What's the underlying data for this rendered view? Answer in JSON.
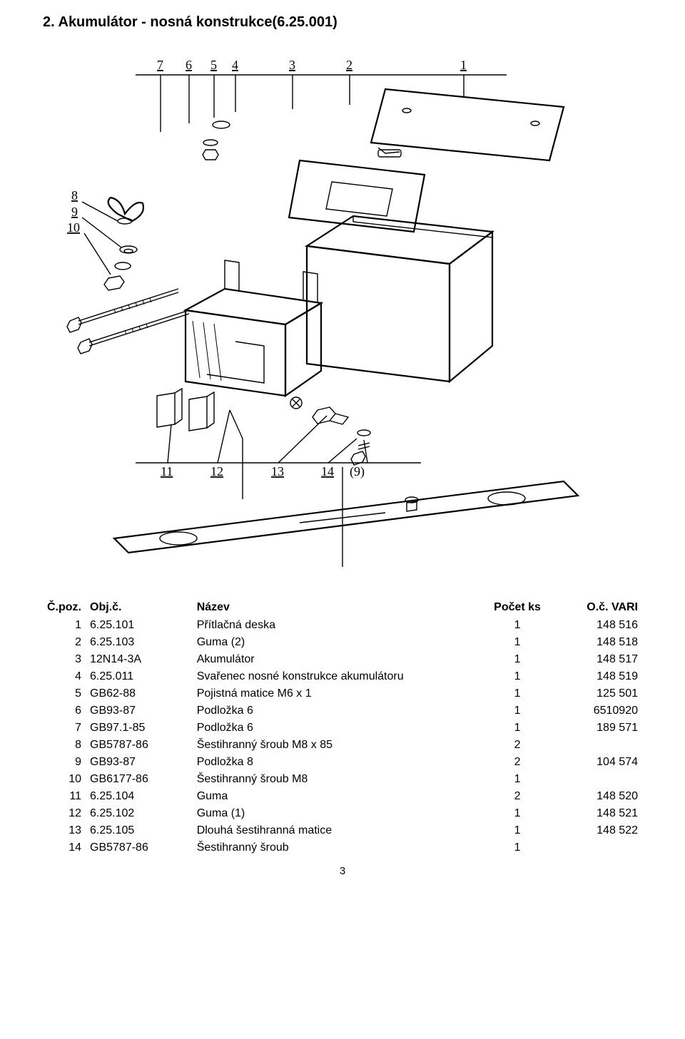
{
  "title": "2.  Akumulátor - nosná konstrukce(6.25.001)",
  "page_number": "3",
  "diagram": {
    "callouts_top": [
      "7",
      "6",
      "5",
      "4",
      "3",
      "2",
      "1"
    ],
    "callouts_left": [
      "8",
      "9",
      "10"
    ],
    "callouts_bottom": [
      "11",
      "12",
      "13",
      "14",
      "(9)"
    ]
  },
  "table": {
    "headers": {
      "poz": "Č.poz.",
      "obj": "Obj.č.",
      "name": "Název",
      "qty": "Počet ks",
      "vari": "O.č. VARI"
    },
    "rows": [
      {
        "poz": "1",
        "obj": "6.25.101",
        "name": "Přítlačná deska",
        "qty": "1",
        "vari": "148 516"
      },
      {
        "poz": "2",
        "obj": "6.25.103",
        "name": "Guma (2)",
        "qty": "1",
        "vari": "148 518"
      },
      {
        "poz": "3",
        "obj": "12N14-3A",
        "name": "Akumulátor",
        "qty": "1",
        "vari": "148 517"
      },
      {
        "poz": "4",
        "obj": "6.25.011",
        "name": "Svařenec nosné konstrukce akumulátoru",
        "qty": "1",
        "vari": "148 519"
      },
      {
        "poz": "5",
        "obj": "GB62-88",
        "name": "Pojistná matice M6 x 1",
        "qty": "1",
        "vari": "125 501"
      },
      {
        "poz": "6",
        "obj": "GB93-87",
        "name": "Podložka 6",
        "qty": "1",
        "vari": "6510920"
      },
      {
        "poz": "7",
        "obj": "GB97.1-85",
        "name": "Podložka 6",
        "qty": "1",
        "vari": "189 571"
      },
      {
        "poz": "8",
        "obj": "GB5787-86",
        "name": "Šestihranný šroub M8 x 85",
        "qty": "2",
        "vari": ""
      },
      {
        "poz": "9",
        "obj": "GB93-87",
        "name": "Podložka 8",
        "qty": "2",
        "vari": "104 574"
      },
      {
        "poz": "10",
        "obj": "GB6177-86",
        "name": "Šestihranný šroub M8",
        "qty": "1",
        "vari": ""
      },
      {
        "poz": "11",
        "obj": "6.25.104",
        "name": "Guma",
        "qty": "2",
        "vari": "148 520"
      },
      {
        "poz": "12",
        "obj": "6.25.102",
        "name": "Guma (1)",
        "qty": "1",
        "vari": "148 521"
      },
      {
        "poz": "13",
        "obj": "6.25.105",
        "name": "Dlouhá šestihranná matice",
        "qty": "1",
        "vari": "148 522"
      },
      {
        "poz": "14",
        "obj": "GB5787-86",
        "name": "Šestihranný šroub",
        "qty": "1",
        "vari": ""
      }
    ]
  }
}
